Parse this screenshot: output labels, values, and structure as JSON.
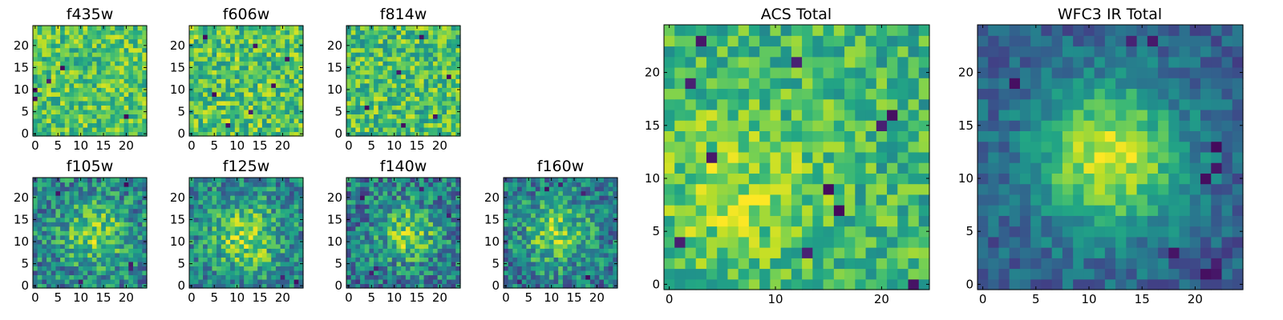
{
  "chart_data": [
    {
      "type": "heatmap",
      "title": "f435w",
      "grid": [
        25,
        25
      ],
      "xlim": [
        -0.5,
        24.5
      ],
      "ylim": [
        -0.5,
        24.5
      ],
      "xticks": [
        0,
        5,
        10,
        15,
        20
      ],
      "yticks": [
        0,
        5,
        10,
        15,
        20
      ],
      "colormap": "viridis",
      "xlabel": "",
      "ylabel": "",
      "pattern": "noise",
      "mean": 0.72,
      "noise_amplitude": 0.22,
      "seed": 11,
      "source": null,
      "low_pixels": [
        [
          0,
          10
        ],
        [
          0,
          8
        ],
        [
          3,
          12
        ],
        [
          6,
          15
        ],
        [
          20,
          4
        ]
      ]
    },
    {
      "type": "heatmap",
      "title": "f606w",
      "grid": [
        25,
        25
      ],
      "xlim": [
        -0.5,
        24.5
      ],
      "ylim": [
        -0.5,
        24.5
      ],
      "xticks": [
        0,
        5,
        10,
        15,
        20
      ],
      "yticks": [
        0,
        5,
        10,
        15,
        20
      ],
      "colormap": "viridis",
      "xlabel": "",
      "ylabel": "",
      "pattern": "noise",
      "mean": 0.72,
      "noise_amplitude": 0.24,
      "seed": 23,
      "source": null,
      "low_pixels": [
        [
          3,
          22
        ],
        [
          14,
          20
        ],
        [
          13,
          5
        ],
        [
          8,
          2
        ],
        [
          18,
          11
        ],
        [
          21,
          17
        ],
        [
          5,
          9
        ]
      ]
    },
    {
      "type": "heatmap",
      "title": "f814w",
      "grid": [
        25,
        25
      ],
      "xlim": [
        -0.5,
        24.5
      ],
      "ylim": [
        -0.5,
        24.5
      ],
      "xticks": [
        0,
        5,
        10,
        15,
        20
      ],
      "yticks": [
        0,
        5,
        10,
        15,
        20
      ],
      "colormap": "viridis",
      "xlabel": "",
      "ylabel": "",
      "pattern": "noise",
      "mean": 0.7,
      "noise_amplitude": 0.24,
      "seed": 37,
      "source": null,
      "low_pixels": [
        [
          16,
          22
        ],
        [
          11,
          14
        ],
        [
          22,
          13
        ],
        [
          4,
          6
        ],
        [
          12,
          2
        ],
        [
          19,
          4
        ]
      ]
    },
    {
      "type": "heatmap",
      "title": "f105w",
      "grid": [
        25,
        25
      ],
      "xlim": [
        -0.5,
        24.5
      ],
      "ylim": [
        -0.5,
        24.5
      ],
      "xticks": [
        0,
        5,
        10,
        15,
        20
      ],
      "yticks": [
        0,
        5,
        10,
        15,
        20
      ],
      "colormap": "viridis",
      "xlabel": "",
      "ylabel": "",
      "pattern": "source",
      "mean": 0.45,
      "noise_amplitude": 0.26,
      "seed": 41,
      "source": {
        "x": 13,
        "y": 12,
        "sigma": 5.0,
        "amplitude": 0.35
      },
      "low_pixels": [
        [
          21,
          4
        ],
        [
          21,
          5
        ],
        [
          10,
          1
        ],
        [
          20,
          23
        ],
        [
          5,
          21
        ]
      ]
    },
    {
      "type": "heatmap",
      "title": "f125w",
      "grid": [
        25,
        25
      ],
      "xlim": [
        -0.5,
        24.5
      ],
      "ylim": [
        -0.5,
        24.5
      ],
      "xticks": [
        0,
        5,
        10,
        15,
        20
      ],
      "yticks": [
        0,
        5,
        10,
        15,
        20
      ],
      "colormap": "viridis",
      "xlabel": "",
      "ylabel": "",
      "pattern": "source",
      "mean": 0.45,
      "noise_amplitude": 0.25,
      "seed": 53,
      "source": {
        "x": 12,
        "y": 11,
        "sigma": 5.5,
        "amplitude": 0.38
      },
      "low_pixels": [
        [
          23,
          1
        ],
        [
          20,
          2
        ]
      ]
    },
    {
      "type": "heatmap",
      "title": "f140w",
      "grid": [
        25,
        25
      ],
      "xlim": [
        -0.5,
        24.5
      ],
      "ylim": [
        -0.5,
        24.5
      ],
      "xticks": [
        0,
        5,
        10,
        15,
        20
      ],
      "yticks": [
        0,
        5,
        10,
        15,
        20
      ],
      "colormap": "viridis",
      "xlabel": "",
      "ylabel": "",
      "pattern": "source",
      "mean": 0.42,
      "noise_amplitude": 0.27,
      "seed": 67,
      "source": {
        "x": 13,
        "y": 12,
        "sigma": 4.5,
        "amplitude": 0.38
      },
      "low_pixels": [
        [
          5,
          3
        ],
        [
          6,
          4
        ],
        [
          22,
          16
        ],
        [
          16,
          22
        ],
        [
          3,
          20
        ]
      ]
    },
    {
      "type": "heatmap",
      "title": "f160w",
      "grid": [
        25,
        25
      ],
      "xlim": [
        -0.5,
        24.5
      ],
      "ylim": [
        -0.5,
        24.5
      ],
      "xticks": [
        0,
        5,
        10,
        15,
        20
      ],
      "yticks": [
        0,
        5,
        10,
        15,
        20
      ],
      "colormap": "viridis",
      "xlabel": "",
      "ylabel": "",
      "pattern": "source",
      "mean": 0.42,
      "noise_amplitude": 0.26,
      "seed": 79,
      "source": {
        "x": 11,
        "y": 12,
        "sigma": 5.0,
        "amplitude": 0.38
      },
      "low_pixels": [
        [
          12,
          23
        ],
        [
          9,
          22
        ],
        [
          17,
          21
        ],
        [
          18,
          2
        ],
        [
          3,
          1
        ]
      ]
    },
    {
      "type": "heatmap",
      "title": "ACS Total",
      "grid": [
        25,
        25
      ],
      "xlim": [
        -0.5,
        24.5
      ],
      "ylim": [
        -0.5,
        24.5
      ],
      "xticks": [
        0,
        10,
        20
      ],
      "yticks": [
        0,
        5,
        10,
        15,
        20
      ],
      "colormap": "viridis",
      "xlabel": "",
      "ylabel": "",
      "pattern": "source",
      "mean": 0.66,
      "noise_amplitude": 0.2,
      "seed": 97,
      "source": {
        "x": 6,
        "y": 9,
        "sigma": 5.5,
        "amplitude": 0.18
      },
      "low_pixels": [
        [
          3,
          23
        ],
        [
          2,
          19
        ],
        [
          12,
          21
        ],
        [
          4,
          12
        ],
        [
          20,
          15
        ],
        [
          21,
          16
        ],
        [
          16,
          7
        ],
        [
          1,
          4
        ],
        [
          13,
          3
        ],
        [
          23,
          0
        ],
        [
          15,
          9
        ]
      ]
    },
    {
      "type": "heatmap",
      "title": "WFC3 IR Total",
      "grid": [
        25,
        25
      ],
      "xlim": [
        -0.5,
        24.5
      ],
      "ylim": [
        -0.5,
        24.5
      ],
      "xticks": [
        0,
        5,
        10,
        15,
        20
      ],
      "yticks": [
        0,
        5,
        10,
        15,
        20
      ],
      "colormap": "viridis",
      "xlabel": "",
      "ylabel": "",
      "pattern": "source",
      "mean": 0.3,
      "noise_amplitude": 0.14,
      "seed": 113,
      "source": {
        "x": 12,
        "y": 12,
        "sigma": 5.0,
        "amplitude": 0.62
      },
      "low_pixels": [
        [
          21,
          1
        ],
        [
          22,
          1
        ],
        [
          22,
          2
        ],
        [
          21,
          10
        ],
        [
          22,
          11
        ],
        [
          16,
          23
        ],
        [
          14,
          23
        ],
        [
          3,
          19
        ],
        [
          22,
          13
        ],
        [
          18,
          3
        ]
      ]
    }
  ]
}
